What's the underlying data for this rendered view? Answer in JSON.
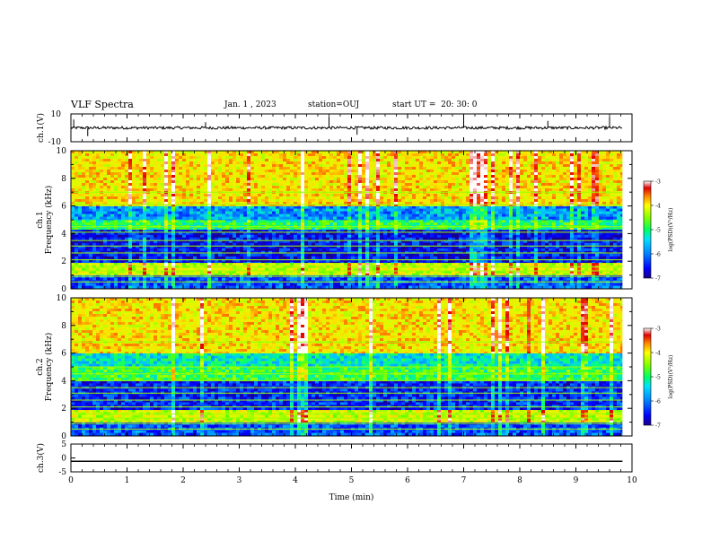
{
  "header": {
    "title": "VLF Spectra",
    "date": "Jan. 1 , 2023",
    "station": "station=OUJ",
    "start_ut": "start UT =  20: 30: 0"
  },
  "colors": {
    "background": "#ffffff",
    "axes": "#000000",
    "colormap": [
      "#1a0088",
      "#0000ff",
      "#0070ff",
      "#00c8ff",
      "#00ff80",
      "#60ff00",
      "#d8ff00",
      "#ffe000",
      "#ff6000",
      "#e00000",
      "#ffffff"
    ]
  },
  "chart_data": [
    {
      "type": "line",
      "name": "waveform-ch1",
      "ylabel": "ch.1(V)",
      "xlim": [
        0,
        10
      ],
      "ylim": [
        -10,
        10
      ],
      "yticks": [
        "10",
        "-10"
      ],
      "baseline": 0,
      "noise_amplitude": 1.0,
      "spikes": [
        {
          "x": 0.05,
          "y": 6
        },
        {
          "x": 0.3,
          "y": -6
        },
        {
          "x": 2.4,
          "y": 4
        },
        {
          "x": 4.6,
          "y": 8
        },
        {
          "x": 5.1,
          "y": -5
        },
        {
          "x": 7.0,
          "y": 7
        },
        {
          "x": 8.5,
          "y": 5
        },
        {
          "x": 9.6,
          "y": 8
        }
      ]
    },
    {
      "type": "heatmap",
      "name": "spectrogram-ch1",
      "ylabel": "ch.1\nFrequency (kHz)",
      "xlim": [
        0,
        10
      ],
      "ylim": [
        0,
        10
      ],
      "yticks": [
        "0",
        "2",
        "4",
        "6",
        "8",
        "10"
      ],
      "colorbar": {
        "label": "log(PSD)(V²/Hz)",
        "range": [
          -7,
          -3
        ],
        "ticks": [
          "-3",
          "-4",
          "-5",
          "-6",
          "-7"
        ]
      },
      "data_extent_min": 9.83,
      "description_bands": [
        {
          "f_from": 0,
          "f_to": 1.0,
          "log_psd": -6.3
        },
        {
          "f_from": 1.0,
          "f_to": 1.9,
          "log_psd": -4.6
        },
        {
          "f_from": 1.9,
          "f_to": 4.3,
          "log_psd": -6.6
        },
        {
          "f_from": 4.3,
          "f_to": 5.0,
          "log_psd": -5.3
        },
        {
          "f_from": 5.0,
          "f_to": 6.0,
          "log_psd": -6.0
        },
        {
          "f_from": 6.0,
          "f_to": 10.0,
          "log_psd": -4.3
        }
      ],
      "lines_khz": [
        0.5,
        0.9,
        1.3,
        1.6,
        2.1,
        2.6,
        3.1,
        3.5,
        4.1,
        4.5,
        6.1,
        7.0
      ]
    },
    {
      "type": "heatmap",
      "name": "spectrogram-ch2",
      "ylabel": "ch.2\nFrequency (kHz)",
      "xlim": [
        0,
        10
      ],
      "ylim": [
        0,
        10
      ],
      "yticks": [
        "0",
        "2",
        "4",
        "6",
        "8",
        "10"
      ],
      "colorbar": {
        "label": "log(PSD)(V²/Hz)",
        "range": [
          -7,
          -3
        ],
        "ticks": [
          "-3",
          "-4",
          "-5",
          "-6",
          "-7"
        ]
      },
      "data_extent_min": 9.83,
      "description_bands": [
        {
          "f_from": 0,
          "f_to": 1.0,
          "log_psd": -6.3
        },
        {
          "f_from": 1.0,
          "f_to": 1.9,
          "log_psd": -4.6
        },
        {
          "f_from": 1.9,
          "f_to": 4.0,
          "log_psd": -6.5
        },
        {
          "f_from": 4.0,
          "f_to": 5.0,
          "log_psd": -5.2
        },
        {
          "f_from": 5.0,
          "f_to": 6.0,
          "log_psd": -5.6
        },
        {
          "f_from": 6.0,
          "f_to": 10.0,
          "log_psd": -4.3
        }
      ],
      "lines_khz": [
        0.5,
        0.9,
        1.3,
        1.6,
        2.1,
        2.6,
        3.1,
        3.5,
        4.0,
        4.5,
        5.0,
        6.8
      ]
    },
    {
      "type": "line",
      "name": "waveform-ch3",
      "ylabel": "ch.3(V)",
      "xlim": [
        0,
        10
      ],
      "ylim": [
        -5,
        5
      ],
      "yticks": [
        "5",
        "0",
        "-5"
      ],
      "baseline": -1.2,
      "noise_amplitude": 0
    }
  ],
  "xaxis": {
    "label": "Time (min)",
    "ticks": [
      "0",
      "1",
      "2",
      "3",
      "4",
      "5",
      "6",
      "7",
      "8",
      "9",
      "10"
    ]
  }
}
